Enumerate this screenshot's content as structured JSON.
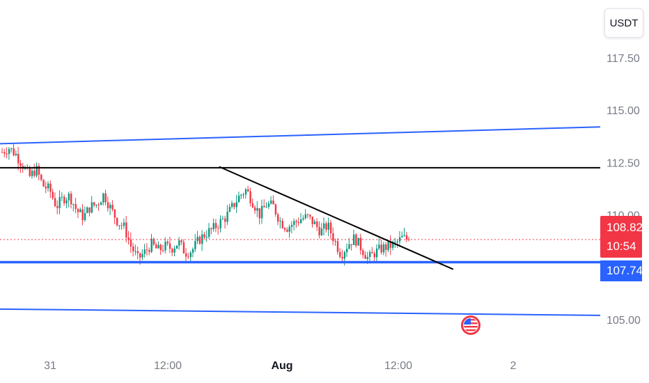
{
  "header": {
    "currency": "USDT"
  },
  "chart_data": {
    "type": "candlestick",
    "y_axis": {
      "ticks": [
        "117.50",
        "115.00",
        "112.50",
        "110.00",
        "105.00"
      ],
      "range": [
        103.2,
        118.2
      ]
    },
    "x_axis": {
      "ticks": [
        {
          "label": "31",
          "bold": false
        },
        {
          "label": "12:00",
          "bold": false
        },
        {
          "label": "Aug",
          "bold": true
        },
        {
          "label": "12:00",
          "bold": false
        },
        {
          "label": "2",
          "bold": false
        }
      ]
    },
    "current_price": {
      "value": "108.82",
      "countdown": "10:54"
    },
    "level_price": {
      "value": "107.74"
    },
    "colors": {
      "up": "#089981",
      "down": "#f23645",
      "blue_line": "#2962ff",
      "black_line": "#000000"
    },
    "close_path": [
      113.0,
      113.2,
      112.9,
      112.4,
      111.8,
      112.2,
      111.4,
      111.2,
      110.4,
      110.8,
      110.9,
      110.2,
      109.9,
      110.4,
      110.5,
      111.0,
      110.3,
      109.7,
      109.4,
      108.5,
      107.9,
      108.2,
      108.6,
      108.3,
      108.5,
      108.4,
      108.7,
      108.2,
      108.3,
      108.8,
      109.1,
      109.3,
      109.6,
      109.9,
      110.4,
      110.9,
      111.2,
      110.6,
      110.0,
      110.5,
      110.4,
      109.7,
      109.4,
      109.6,
      109.8,
      109.9,
      109.6,
      109.2,
      109.5,
      108.8,
      108.1,
      108.6,
      108.9,
      108.4,
      107.9,
      108.2,
      108.4,
      108.5,
      108.6,
      108.9,
      108.82
    ],
    "trend_lines": [
      {
        "kind": "channel-upper",
        "color": "blue",
        "points": [
          [
            0,
            113.4
          ],
          [
            1,
            114.2
          ]
        ]
      },
      {
        "kind": "channel-lower",
        "color": "blue",
        "points": [
          [
            0,
            105.5
          ],
          [
            1,
            105.2
          ]
        ]
      },
      {
        "kind": "resistance",
        "color": "black",
        "value": 112.25
      },
      {
        "kind": "support",
        "color": "blue",
        "value": 107.74
      },
      {
        "kind": "descending",
        "color": "black",
        "points": [
          [
            0.365,
            112.3
          ],
          [
            0.755,
            107.4
          ]
        ]
      }
    ]
  }
}
